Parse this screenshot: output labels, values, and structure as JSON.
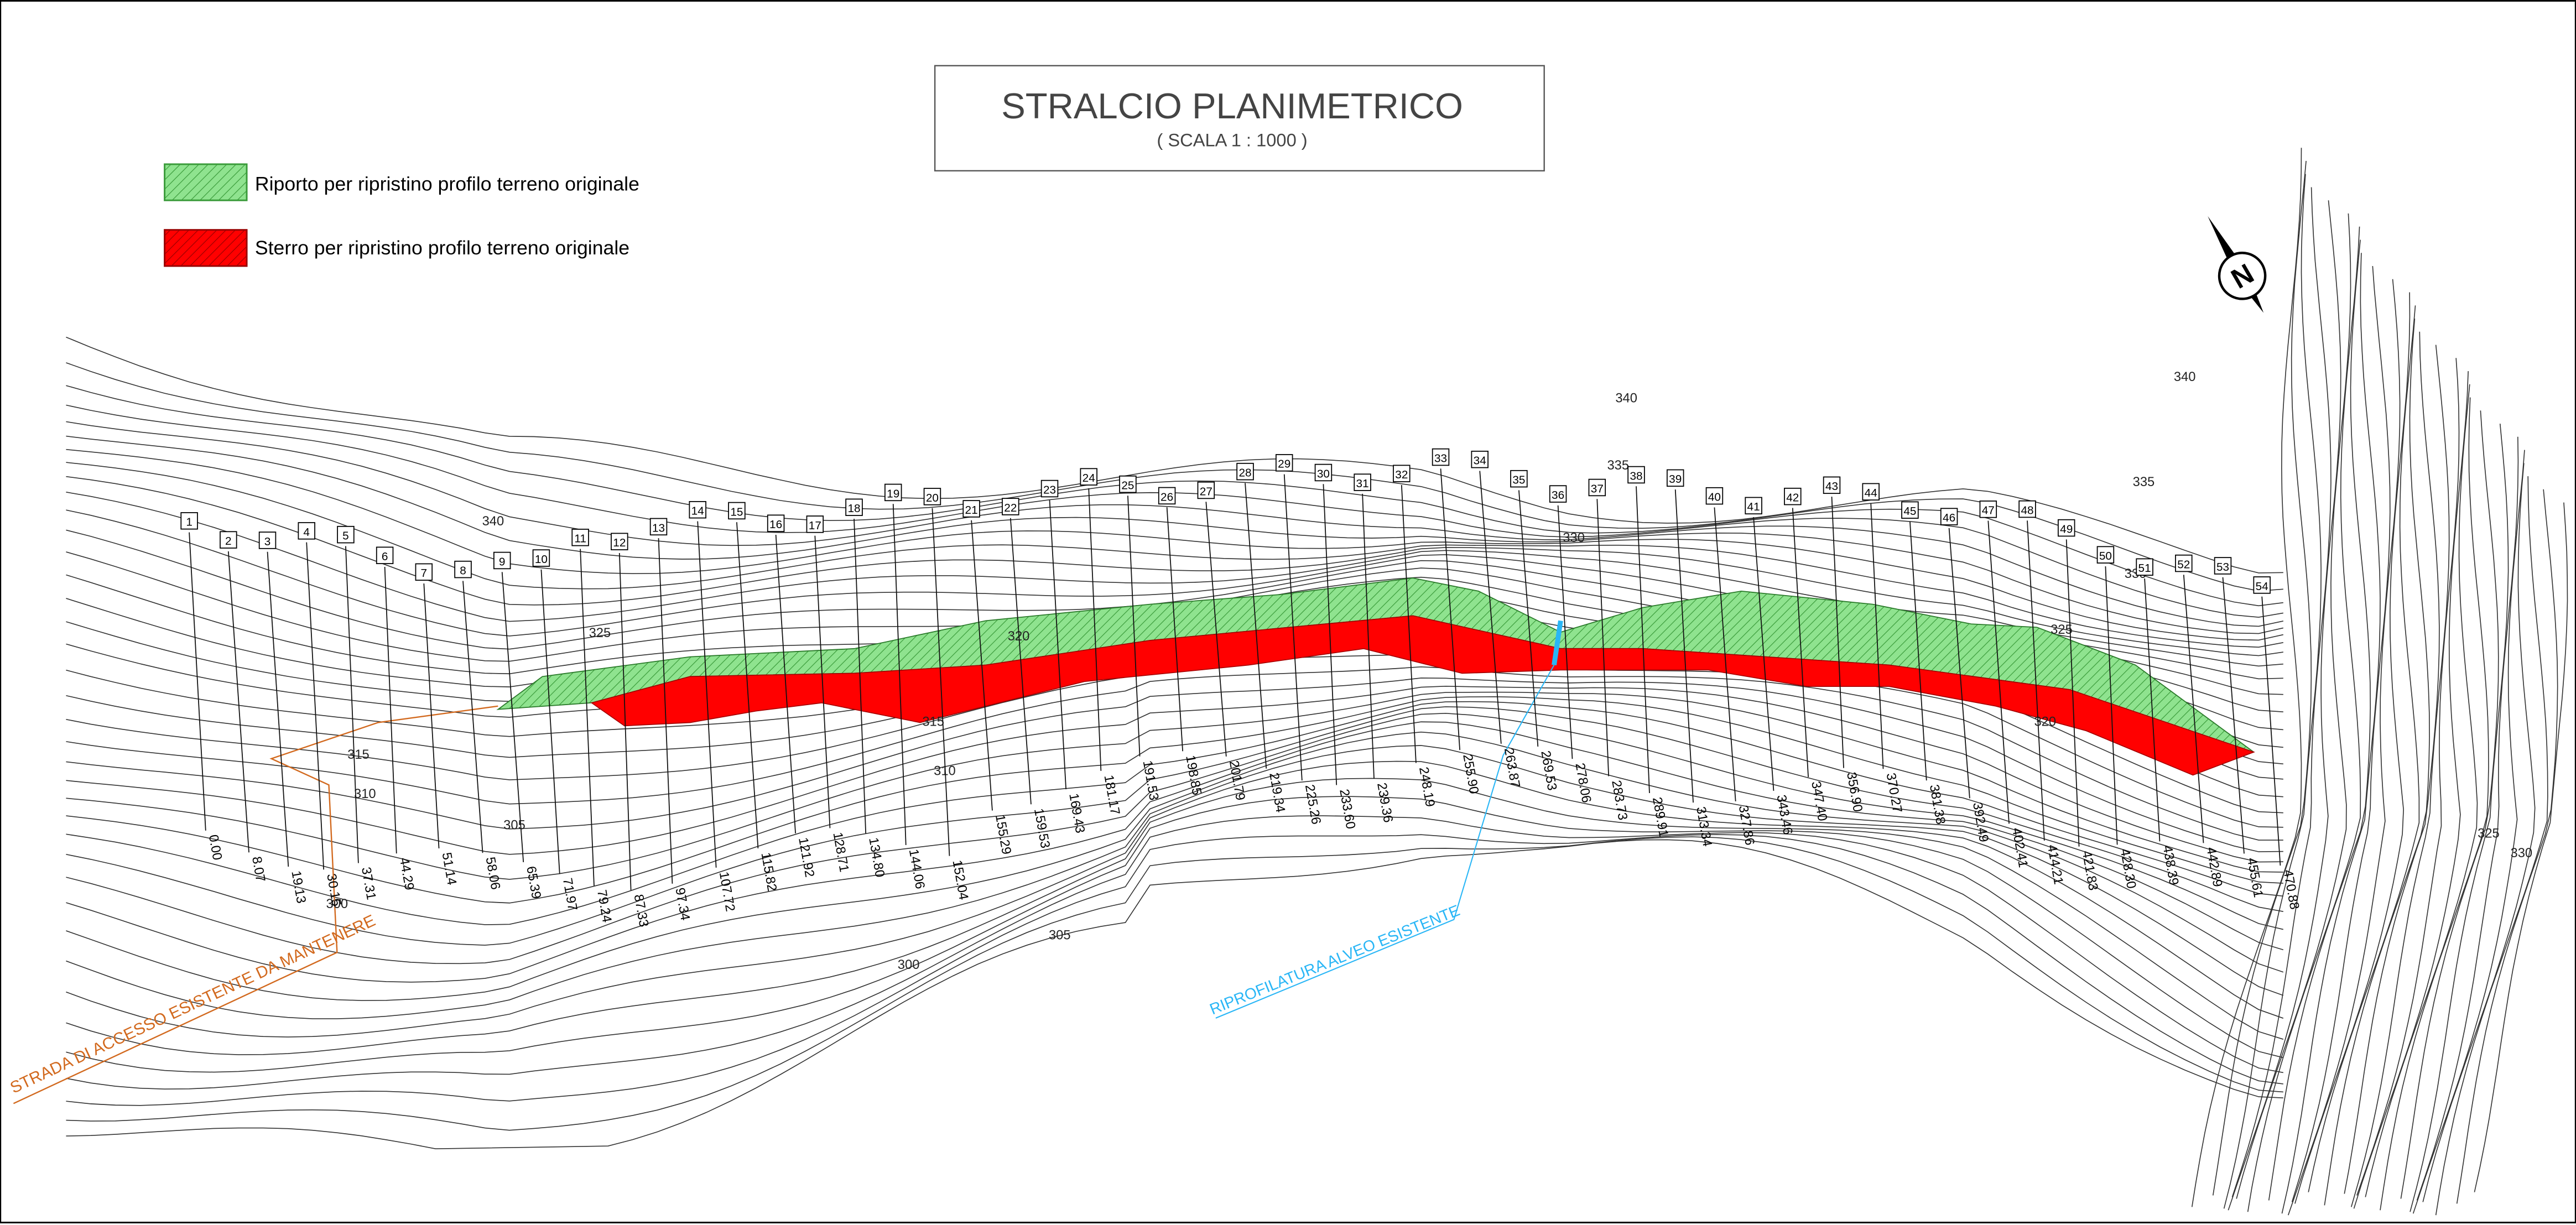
{
  "header": {
    "title": "STRALCIO  PLANIMETRICO",
    "scale": "( SCALA  1 : 1000 )"
  },
  "legend": [
    {
      "label": "Riporto per ripristino profilo terreno originale"
    },
    {
      "label": "Sterro per ripristino profilo terreno originale"
    }
  ],
  "annotations": {
    "road": "STRADA DI ACCESSO ESISTENTE DA MANTENERE",
    "channel": "RIPROFILATURA ALVEO ESISTENTE",
    "north": "N"
  },
  "contour_labels": [
    "340",
    "340",
    "340",
    "335",
    "335",
    "330",
    "330",
    "325",
    "325",
    "320",
    "320",
    "315",
    "315",
    "310",
    "310",
    "305",
    "305",
    "300",
    "300",
    "325",
    "330"
  ],
  "sections": [
    "1",
    "2",
    "3",
    "4",
    "5",
    "6",
    "7",
    "8",
    "9",
    "10",
    "11",
    "12",
    "13",
    "14",
    "15",
    "16",
    "17",
    "18",
    "19",
    "20",
    "21",
    "22",
    "23",
    "24",
    "25",
    "26",
    "27",
    "28",
    "29",
    "30",
    "31",
    "32",
    "33",
    "34",
    "35",
    "36",
    "37",
    "38",
    "39",
    "40",
    "41",
    "42",
    "43",
    "44",
    "45",
    "46",
    "47",
    "48",
    "49",
    "50",
    "51",
    "52",
    "53",
    "54"
  ],
  "progressive": [
    "0.00",
    "8.07",
    "19.13",
    "30.15",
    "37.31",
    "44.29",
    "51.14",
    "58.06",
    "65.39",
    "71.97",
    "79.24",
    "87.33",
    "97.34",
    "107.72",
    "115.82",
    "121.92",
    "128.71",
    "134.80",
    "144.06",
    "152.04",
    "155.29",
    "159.53",
    "169.43",
    "181.17",
    "191.53",
    "198.85",
    "201.79",
    "219.34",
    "225.26",
    "233.60",
    "239.36",
    "248.19",
    "255.90",
    "263.87",
    "269.53",
    "278.06",
    "283.73",
    "289.91",
    "313.34",
    "327.86",
    "343.46",
    "347.40",
    "356.90",
    "370.27",
    "381.38",
    "392.49",
    "402.41",
    "414.21",
    "421.83",
    "428.30",
    "438.39",
    "442.89",
    "455.61",
    "470.88"
  ]
}
